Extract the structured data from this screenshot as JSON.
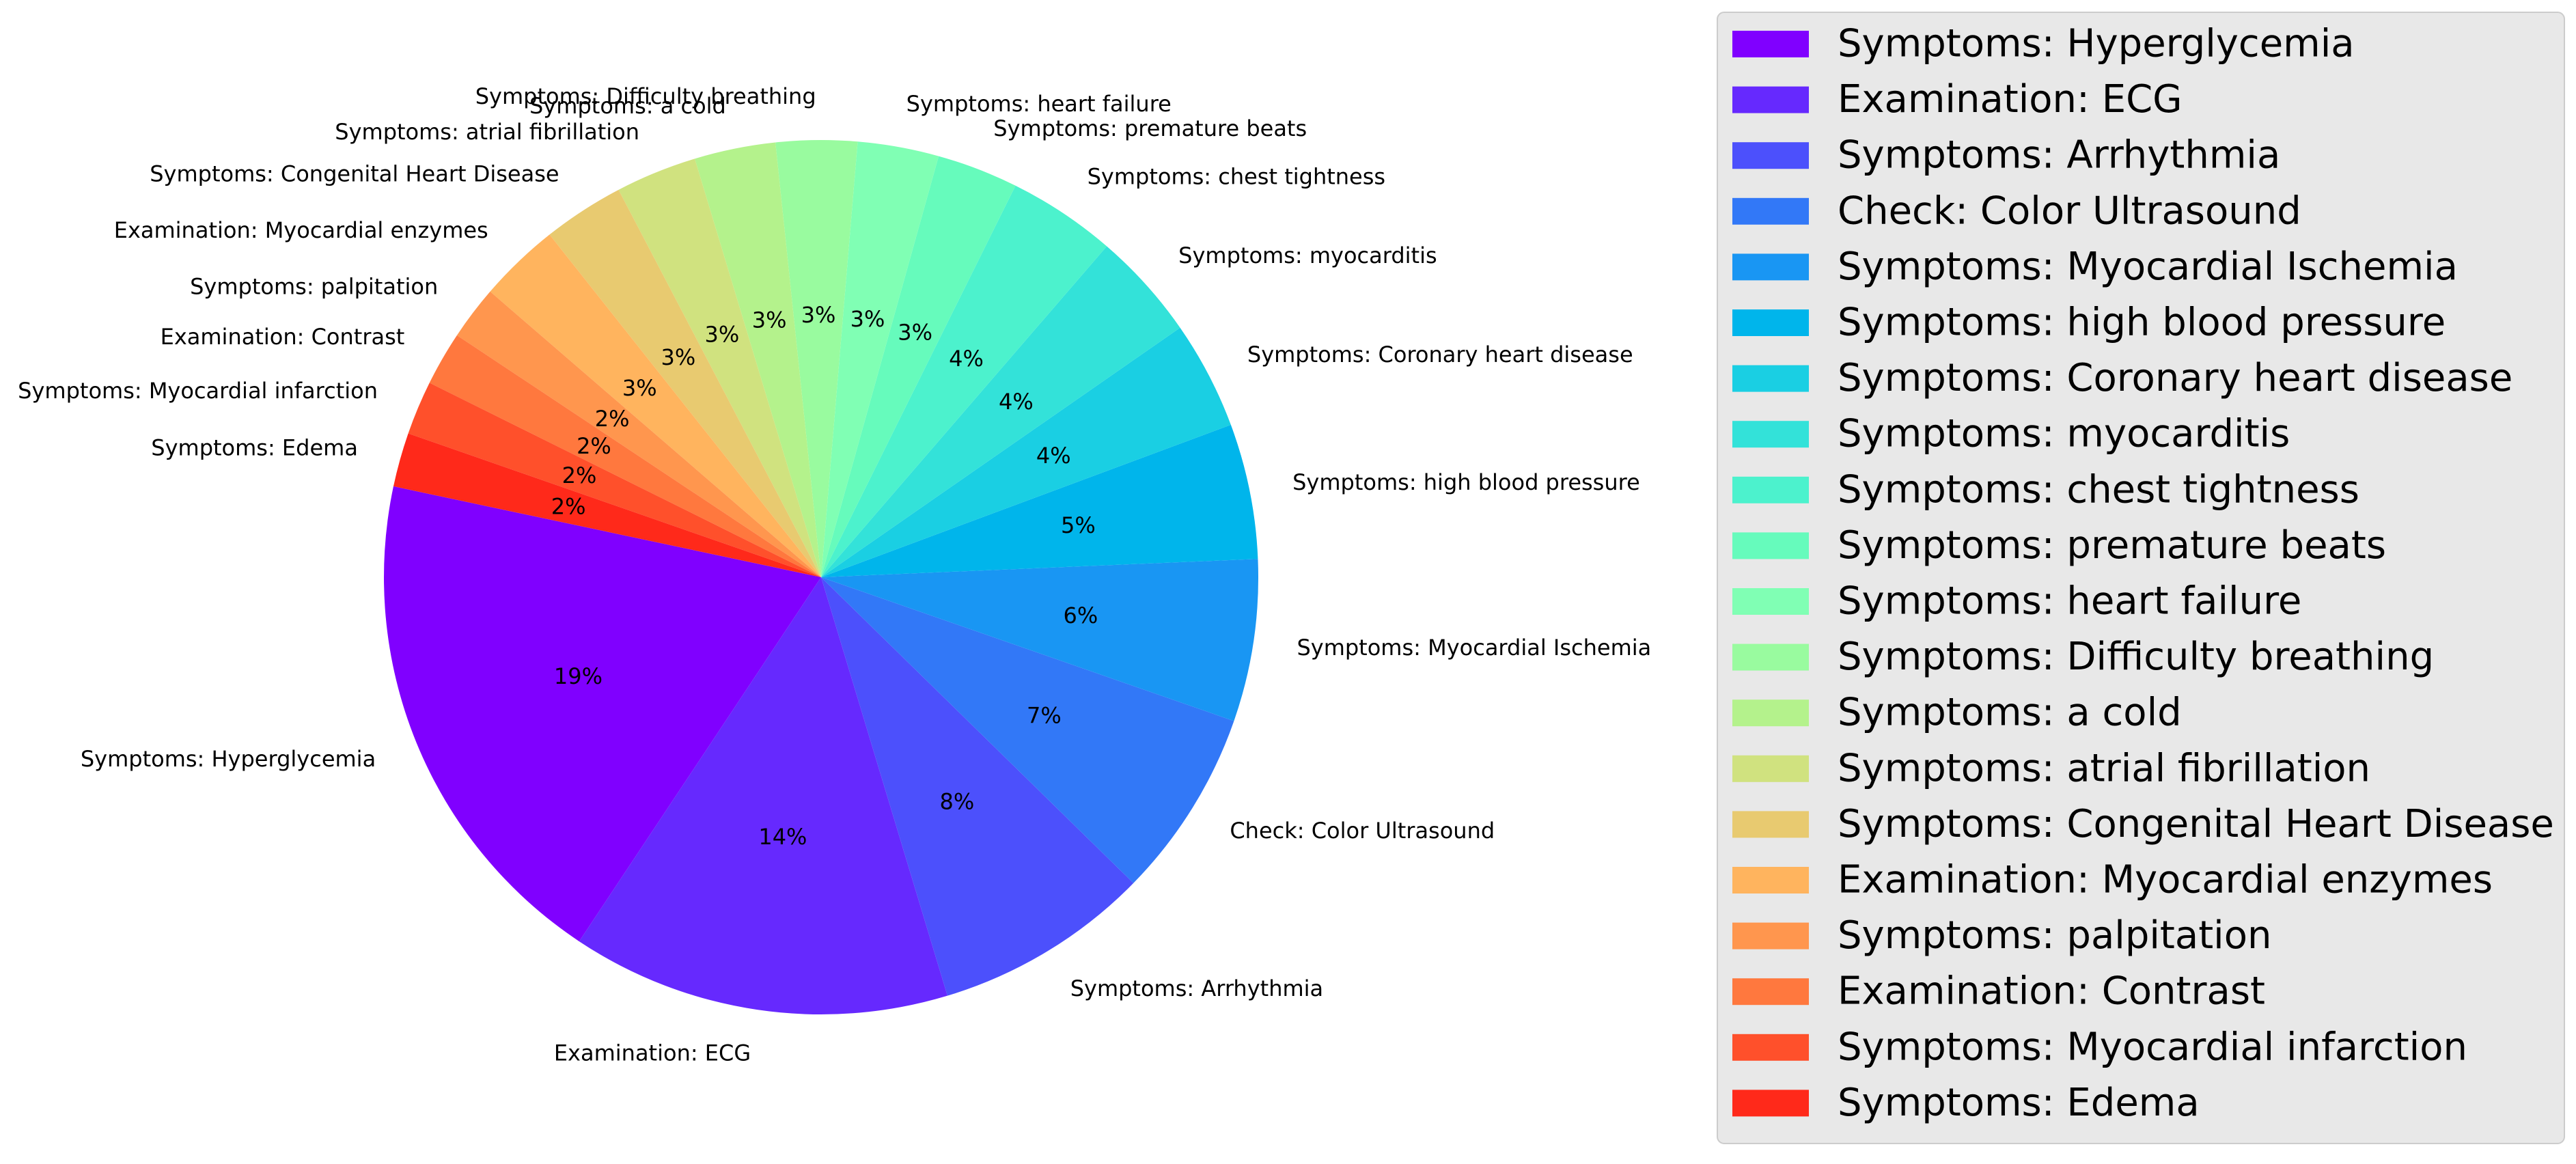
{
  "chart_data": {
    "type": "pie",
    "title": "",
    "legend_placement": "right",
    "slices": [
      {
        "label": "Symptoms: Hyperglycemia",
        "value": 19,
        "pct_label": "19%",
        "color": "#8000ff"
      },
      {
        "label": "Examination: ECG",
        "value": 14,
        "pct_label": "14%",
        "color": "#6629fe"
      },
      {
        "label": "Symptoms: Arrhythmia",
        "value": 8,
        "pct_label": "8%",
        "color": "#4c50fc"
      },
      {
        "label": "Check: Color Ultrasound",
        "value": 7,
        "pct_label": "7%",
        "color": "#3278f7"
      },
      {
        "label": "Symptoms: Myocardial Ischemia",
        "value": 6,
        "pct_label": "6%",
        "color": "#1996f3"
      },
      {
        "label": "Symptoms: high blood pressure",
        "value": 5,
        "pct_label": "5%",
        "color": "#00b5eb"
      },
      {
        "label": "Symptoms: Coronary heart disease",
        "value": 4,
        "pct_label": "4%",
        "color": "#1acfe3"
      },
      {
        "label": "Symptoms: myocarditis",
        "value": 4,
        "pct_label": "4%",
        "color": "#33e2d9"
      },
      {
        "label": "Symptoms: chest tightness",
        "value": 4,
        "pct_label": "4%",
        "color": "#4cf2cd"
      },
      {
        "label": "Symptoms: premature beats",
        "value": 3,
        "pct_label": "3%",
        "color": "#66fbbc"
      },
      {
        "label": "Symptoms: heart failure",
        "value": 3,
        "pct_label": "3%",
        "color": "#80ffb4"
      },
      {
        "label": "Symptoms: Difficulty breathing",
        "value": 3,
        "pct_label": "3%",
        "color": "#99fb9f"
      },
      {
        "label": "Symptoms: a cold",
        "value": 3,
        "pct_label": "3%",
        "color": "#b4f28c"
      },
      {
        "label": "Symptoms: atrial fibrillation",
        "value": 3,
        "pct_label": "3%",
        "color": "#d0e27f"
      },
      {
        "label": "Symptoms: Congenital Heart Disease",
        "value": 3,
        "pct_label": "3%",
        "color": "#e8ca70"
      },
      {
        "label": "Examination: Myocardial enzymes",
        "value": 3,
        "pct_label": "3%",
        "color": "#ffb45e"
      },
      {
        "label": "Symptoms: palpitation",
        "value": 2,
        "pct_label": "2%",
        "color": "#ff964e"
      },
      {
        "label": "Examination: Contrast",
        "value": 2,
        "pct_label": "2%",
        "color": "#ff783e"
      },
      {
        "label": "Symptoms: Myocardial infarction",
        "value": 2,
        "pct_label": "2%",
        "color": "#ff502b"
      },
      {
        "label": "Symptoms: Edema",
        "value": 2,
        "pct_label": "2%",
        "color": "#ff291a"
      }
    ]
  }
}
